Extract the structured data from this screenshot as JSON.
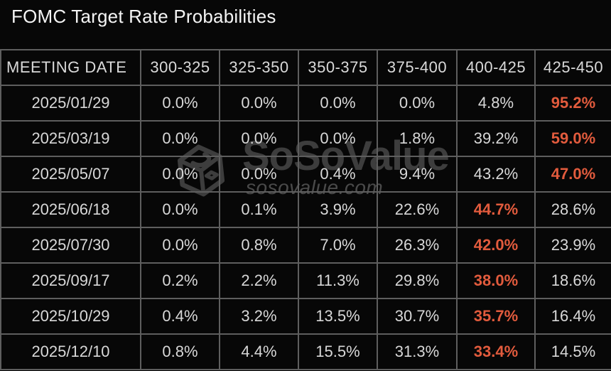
{
  "title": "FOMC Target Rate Probabilities",
  "watermark": {
    "brand": "SoSoValue",
    "domain": "sosovalue.com",
    "logo": "sosovalue-cube-logo",
    "color": "#3d3d3d"
  },
  "table": {
    "columns": [
      "MEETING DATE",
      "300-325",
      "325-350",
      "350-375",
      "375-400",
      "400-425",
      "425-450"
    ],
    "rows": [
      [
        "2025/01/29",
        "0.0%",
        "0.0%",
        "0.0%",
        "0.0%",
        "4.8%",
        "95.2%"
      ],
      [
        "2025/03/19",
        "0.0%",
        "0.0%",
        "0.0%",
        "1.8%",
        "39.2%",
        "59.0%"
      ],
      [
        "2025/05/07",
        "0.0%",
        "0.0%",
        "0.4%",
        "9.4%",
        "43.2%",
        "47.0%"
      ],
      [
        "2025/06/18",
        "0.0%",
        "0.1%",
        "3.9%",
        "22.6%",
        "44.7%",
        "28.6%"
      ],
      [
        "2025/07/30",
        "0.0%",
        "0.8%",
        "7.0%",
        "26.3%",
        "42.0%",
        "23.9%"
      ],
      [
        "2025/09/17",
        "0.2%",
        "2.2%",
        "11.3%",
        "29.8%",
        "38.0%",
        "18.6%"
      ],
      [
        "2025/10/29",
        "0.4%",
        "3.2%",
        "13.5%",
        "30.7%",
        "35.7%",
        "16.4%"
      ],
      [
        "2025/12/10",
        "0.8%",
        "4.4%",
        "15.5%",
        "31.3%",
        "33.4%",
        "14.5%"
      ]
    ],
    "highlights": [
      5,
      5,
      5,
      4,
      4,
      4,
      4,
      4
    ]
  },
  "colors": {
    "background": "#070707",
    "grid": "#5e5e5e",
    "text": "#d8d8d8",
    "title_text": "#f4f4f4",
    "highlight": "#e25b3d",
    "watermark": "#3d3d3d"
  },
  "chart_data": {
    "type": "table",
    "title": "FOMC Target Rate Probabilities",
    "row_label": "MEETING DATE",
    "categories": [
      "300-325",
      "325-350",
      "350-375",
      "375-400",
      "400-425",
      "425-450"
    ],
    "rows": [
      {
        "meeting_date": "2025/01/29",
        "probabilities_pct": [
          0.0,
          0.0,
          0.0,
          0.0,
          4.8,
          95.2
        ],
        "max_bucket": "425-450"
      },
      {
        "meeting_date": "2025/03/19",
        "probabilities_pct": [
          0.0,
          0.0,
          0.0,
          1.8,
          39.2,
          59.0
        ],
        "max_bucket": "425-450"
      },
      {
        "meeting_date": "2025/05/07",
        "probabilities_pct": [
          0.0,
          0.0,
          0.4,
          9.4,
          43.2,
          47.0
        ],
        "max_bucket": "425-450"
      },
      {
        "meeting_date": "2025/06/18",
        "probabilities_pct": [
          0.0,
          0.1,
          3.9,
          22.6,
          44.7,
          28.6
        ],
        "max_bucket": "400-425"
      },
      {
        "meeting_date": "2025/07/30",
        "probabilities_pct": [
          0.0,
          0.8,
          7.0,
          26.3,
          42.0,
          23.9
        ],
        "max_bucket": "400-425"
      },
      {
        "meeting_date": "2025/09/17",
        "probabilities_pct": [
          0.2,
          2.2,
          11.3,
          29.8,
          38.0,
          18.6
        ],
        "max_bucket": "400-425"
      },
      {
        "meeting_date": "2025/10/29",
        "probabilities_pct": [
          0.4,
          3.2,
          13.5,
          30.7,
          35.7,
          16.4
        ],
        "max_bucket": "400-425"
      },
      {
        "meeting_date": "2025/12/10",
        "probabilities_pct": [
          0.8,
          4.4,
          15.5,
          31.3,
          33.4,
          14.5
        ],
        "max_bucket": "400-425"
      }
    ],
    "unit": "%",
    "highlight_rule": "max probability per row shown bold orange",
    "highlight_color": "#e25b3d",
    "grid": true,
    "legend_position": "none"
  }
}
